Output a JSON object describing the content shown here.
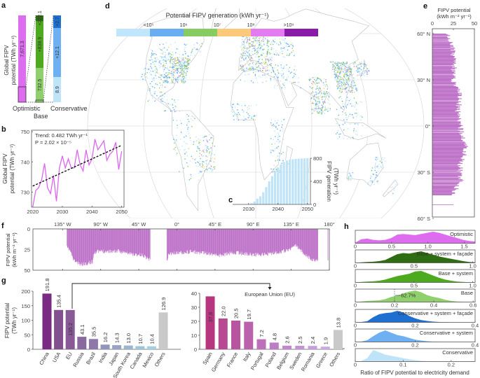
{
  "panel_labels": {
    "a": "a",
    "b": "b",
    "c": "c",
    "d": "d",
    "e": "e",
    "f": "f",
    "g": "g",
    "h": "h"
  },
  "colors": {
    "optimistic": "#dd6cf0",
    "base": "#8fd06c",
    "base_system": "#4daa1f",
    "base_system_facade": "#2e6d12",
    "conservative": "#bfe4f8",
    "conservative_system": "#6fb0f2",
    "conservative_system_facade": "#1f6fd1",
    "profile": "#bd72c8",
    "trend": "#dd66f0",
    "others": "#c8c8c8"
  },
  "chart_data": [
    {
      "type": "bar",
      "ylabel": [
        "Global FIPV",
        "potential (TWh yr⁻¹)"
      ],
      "categories": [
        "Optimistic",
        "Base",
        "Conservative"
      ],
      "stacks": [
        {
          "segments": [
            {
              "label": "7,671.3",
              "value": 7671.3
            }
          ]
        },
        {
          "segments": [
            {
              "label": "732.5",
              "value": 732.5
            },
            {
              "label": "+838.9",
              "value": 838.9
            },
            {
              "label": "+222.1",
              "value": 222.1
            }
          ]
        },
        {
          "segments": [
            {
              "label": "8.9",
              "value": 8.9
            },
            {
              "label": "+12.1",
              "value": 12.1
            },
            {
              "label": "+2.7",
              "value": 2.7
            }
          ]
        }
      ]
    },
    {
      "type": "line",
      "ylabel": [
        "Global FIPV",
        "potential (TWh yr⁻¹)"
      ],
      "annotation": [
        "Trend: 0.482 TWh yr⁻¹",
        "P = 2.02 × 10⁻⁵"
      ],
      "x": [
        2020,
        2021,
        2022,
        2023,
        2024,
        2025,
        2026,
        2027,
        2028,
        2029,
        2030,
        2031,
        2032,
        2033,
        2034,
        2035,
        2036,
        2037,
        2038,
        2039,
        2040,
        2041,
        2042,
        2043,
        2044,
        2045,
        2046,
        2047,
        2048,
        2049,
        2050
      ],
      "y": [
        725,
        730.5,
        731.5,
        734,
        739.5,
        731.5,
        729.5,
        735.5,
        727,
        738,
        742,
        738,
        741,
        738,
        738,
        744,
        739,
        737,
        744,
        739,
        741,
        747.5,
        744,
        745.5,
        747,
        740.5,
        742.5,
        743.5,
        746.5,
        737.5,
        743.5
      ],
      "trend": {
        "x": [
          2020,
          2050
        ],
        "y": [
          732,
          745.5
        ]
      },
      "xticks": [
        "2020",
        "2030",
        "2040",
        "2050"
      ],
      "yticks": [
        "730",
        "740",
        "750"
      ],
      "xlim": [
        2019.6,
        2050.8
      ],
      "ylim": [
        725,
        750.5
      ]
    },
    {
      "type": "bar",
      "ylabel": [
        "FIPV generation",
        "(TWh yr⁻¹)"
      ],
      "x": [
        2031,
        2032,
        2033,
        2034,
        2035,
        2036,
        2037,
        2038,
        2039,
        2040,
        2041,
        2042,
        2043,
        2044,
        2045,
        2046,
        2047,
        2048,
        2049,
        2050
      ],
      "values": [
        20,
        50,
        100,
        140,
        210,
        300,
        400,
        490,
        575,
        640,
        695,
        735,
        760,
        775,
        782,
        788,
        792,
        795,
        797,
        800
      ],
      "xticks": [
        "2030",
        "2040",
        "2050"
      ],
      "yticks": [
        "0",
        "400",
        "800"
      ],
      "xlim": [
        2024.6,
        2051
      ],
      "ylim": [
        0,
        800
      ]
    },
    {
      "type": "heatmap",
      "title": "Potential FIPV generation (kWh yr⁻¹)",
      "legend_labels": [
        "<10⁵",
        "10⁶",
        "10⁷",
        "10⁸",
        ">10⁹"
      ],
      "legend_colors": [
        "#bfe6fa",
        "#6aaef2",
        "#86cc62",
        "#fcc97a",
        "#e27cf0",
        "#8a1aa8"
      ]
    },
    {
      "type": "bar",
      "title": [
        "FIPV potential",
        "(kWh m⁻² yr⁻¹)"
      ],
      "xticks": [
        "0",
        "25",
        "50"
      ],
      "lat_labels": [
        "60° N",
        "30° N",
        "0°",
        "30° S",
        "60° S"
      ],
      "xlim": [
        0,
        50
      ],
      "lat": [
        60,
        55,
        50,
        45,
        40,
        35,
        30,
        25,
        20,
        15,
        10,
        5,
        0,
        -5,
        -10,
        -15,
        -20,
        -25,
        -30,
        -35,
        -40,
        -45,
        -51
      ],
      "values": [
        20,
        22,
        24,
        25,
        26,
        25,
        25,
        29,
        33,
        32,
        30,
        33,
        33,
        35,
        38,
        40,
        36,
        33,
        33,
        34,
        28,
        25,
        25
      ]
    },
    {
      "type": "bar",
      "ylabel": [
        "FIPV potential",
        "(kWh m⁻² yr⁻¹)"
      ],
      "lon_labels": [
        "135° W",
        "90° W",
        "45° W",
        "0°",
        "45° E",
        "90° E",
        "135° E",
        "180°"
      ],
      "yticks": [
        "0",
        "25",
        "50"
      ],
      "xlim": [
        -170,
        180
      ],
      "ylim": [
        0,
        50
      ],
      "lon": [
        -130,
        -127,
        -122,
        -115,
        -108,
        -100,
        -98,
        -90,
        -80,
        -70,
        -60,
        -50,
        -40,
        -32,
        -12,
        -10,
        0,
        10,
        20,
        30,
        40,
        50,
        60,
        70,
        80,
        90,
        100,
        110,
        120,
        130,
        140,
        150,
        160,
        166,
        178
      ],
      "values": [
        23,
        25,
        38,
        43,
        42,
        40,
        28,
        27,
        27,
        27,
        29,
        31,
        32,
        37,
        38,
        30,
        29,
        28,
        28,
        29,
        30,
        32,
        30,
        29,
        30,
        31,
        31,
        30,
        28,
        26,
        20,
        30,
        38,
        38,
        38
      ]
    },
    {
      "type": "bar",
      "ylabel": [
        "FIPV potential",
        "(TWh yr⁻¹)"
      ],
      "yticks": [
        "0",
        "50",
        "100",
        "150",
        "200"
      ],
      "ylim": [
        0,
        200
      ],
      "categories": [
        "China",
        "USA",
        "EU",
        "Russia",
        "Brazil",
        "India",
        "Japan",
        "South Korea",
        "Canada",
        "Mexico",
        "Others"
      ],
      "values": [
        191.8,
        135.4,
        135.2,
        43.1,
        35.5,
        16.2,
        14.3,
        13.0,
        10.7,
        10.4,
        126.9
      ],
      "labels": [
        "191.8",
        "135.4",
        "135.2",
        "43.1",
        "35.5",
        "16.2",
        "14.3",
        "13.0",
        "10.7",
        "10.4",
        "126.9"
      ],
      "colors": [
        "#7a2a84",
        "#83508f",
        "#8a5a97",
        "#8a6a9e",
        "#8e78aa",
        "#9396bb",
        "#99a4c4",
        "#9db4cd",
        "#9fc4d7",
        "#a2d0e2",
        "#c9c9c9"
      ],
      "callout": "European Union (EU)"
    },
    {
      "type": "bar",
      "yticks": [
        "0",
        "10",
        "20",
        "30",
        "40"
      ],
      "ylim": [
        0,
        40
      ],
      "categories": [
        "Spain",
        "Germany",
        "France",
        "Italy",
        "Portugal",
        "Poland",
        "Belgium",
        "Sweden",
        "Romania",
        "Greece",
        "Others"
      ],
      "values": [
        37.8,
        22.0,
        20.5,
        19.7,
        7.2,
        4.8,
        2.6,
        2.5,
        2.4,
        1.9,
        13.8
      ],
      "labels": [
        "37.8",
        "22.0",
        "20.5",
        "19.7",
        "7.2",
        "4.8",
        "2.6",
        "2.5",
        "2.4",
        "1.9",
        "13.8"
      ],
      "colors": [
        "#b8367f",
        "#b84892",
        "#b955a0",
        "#bb62ad",
        "#bd6fba",
        "#be7cc6",
        "#c287d0",
        "#c592d8",
        "#c89ddf",
        "#cba8e4",
        "#c9c9c9"
      ]
    },
    {
      "type": "area",
      "xlabel": "Ratio of FIPV potential to electricity demand",
      "annotation": "62.7%",
      "series": [
        {
          "name": "Optimistic",
          "xlim": [
            0,
            1.65
          ],
          "xticks": [
            0,
            0.5,
            1.0,
            1.5
          ],
          "xtick_labels": [
            "0",
            "0.5",
            "1.0",
            "1.5"
          ],
          "color": "#dd6cf0",
          "density": [
            0.05,
            0.35,
            0.4,
            0.3,
            0.25,
            0.3,
            0.45,
            0.75,
            0.8,
            0.75,
            0.7,
            0.8,
            0.9,
            1.0,
            0.9,
            0.75,
            0.6,
            0.45,
            0.3,
            0.2,
            0.15
          ]
        },
        {
          "name": "Base + system + façade",
          "xlim": [
            0,
            1.02
          ],
          "xticks": [
            0,
            0.5,
            1.0
          ],
          "xtick_labels": [
            "0",
            "0.5",
            "1.0"
          ],
          "color": "#2e6d12",
          "density": [
            0,
            0.05,
            0.08,
            0.1,
            0.15,
            0.25,
            0.5,
            0.75,
            0.85,
            0.8,
            0.9,
            1.0,
            0.85,
            0.7,
            0.55,
            0.45,
            0.35,
            0.25,
            0.15,
            0.08,
            0.04
          ]
        },
        {
          "name": "Base + system",
          "xlim": [
            0,
            1.02
          ],
          "xticks": [
            0,
            0.5,
            1.0
          ],
          "xtick_labels": [
            "0",
            "0.5",
            "1.0"
          ],
          "color": "#4daa1f",
          "density": [
            0,
            0.05,
            0.08,
            0.1,
            0.15,
            0.25,
            0.4,
            0.55,
            0.65,
            0.75,
            0.95,
            1.0,
            0.8,
            0.6,
            0.4,
            0.25,
            0.15,
            0.08,
            0.04,
            0.02,
            0.01
          ]
        },
        {
          "name": "Base",
          "xlim": [
            0,
            0.61
          ],
          "xticks": [
            0,
            0.2,
            0.4,
            0.6
          ],
          "xtick_labels": [
            "0",
            "0.2",
            "0.4",
            "0.6"
          ],
          "color": "#8fd06c",
          "density": [
            0,
            0.05,
            0.1,
            0.12,
            0.15,
            0.25,
            0.45,
            0.55,
            0.75,
            0.9,
            1.0,
            0.85,
            0.6,
            0.45,
            0.35,
            0.2,
            0.1,
            0.05,
            0.03,
            0.01,
            0
          ]
        },
        {
          "name": "Conservative + system + façade",
          "xlim": [
            0,
            0.4
          ],
          "xticks": [
            0,
            0.2,
            0.4
          ],
          "xtick_labels": [
            "0",
            "0.2",
            "0.4"
          ],
          "color": "#1f6fd1",
          "density": [
            0,
            0.03,
            0.1,
            0.45,
            0.7,
            0.8,
            0.85,
            1.0,
            0.85,
            0.55,
            0.35,
            0.2,
            0.12,
            0.06,
            0.03,
            0.01,
            0,
            0,
            0,
            0,
            0
          ]
        },
        {
          "name": "Conservative + system",
          "xlim": [
            0,
            0.4
          ],
          "xticks": [
            0,
            0.2,
            0.4
          ],
          "xtick_labels": [
            "0",
            "0.2",
            "0.4"
          ],
          "color": "#6fb0f2",
          "density": [
            0,
            0.03,
            0.15,
            0.5,
            0.8,
            1.0,
            0.8,
            0.6,
            0.5,
            0.35,
            0.2,
            0.12,
            0.06,
            0.03,
            0.01,
            0,
            0,
            0,
            0,
            0,
            0
          ]
        },
        {
          "name": "Conservative",
          "xlim": [
            0,
            0.25
          ],
          "xticks": [
            0,
            0.1,
            0.2
          ],
          "xtick_labels": [
            "0",
            "0.1",
            "0.2"
          ],
          "color": "#bfe4f8",
          "density": [
            0,
            0.05,
            0.3,
            1.0,
            0.8,
            0.6,
            0.5,
            0.4,
            0.3,
            0.2,
            0.12,
            0.06,
            0.03,
            0.01,
            0,
            0,
            0,
            0,
            0,
            0,
            0
          ]
        }
      ]
    }
  ]
}
